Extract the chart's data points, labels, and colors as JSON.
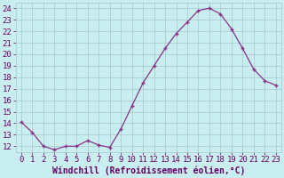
{
  "x": [
    0,
    1,
    2,
    3,
    4,
    5,
    6,
    7,
    8,
    9,
    10,
    11,
    12,
    13,
    14,
    15,
    16,
    17,
    18,
    19,
    20,
    21,
    22,
    23
  ],
  "y": [
    14.1,
    13.2,
    12.0,
    11.7,
    12.0,
    12.0,
    12.5,
    12.1,
    11.9,
    13.5,
    15.5,
    17.5,
    19.0,
    20.5,
    21.8,
    22.8,
    23.8,
    24.0,
    23.5,
    22.2,
    20.5,
    18.7,
    17.7,
    17.3
  ],
  "line_color": "#883388",
  "marker": "+",
  "bg_color": "#c8eef0",
  "grid_color": "#a8c8cc",
  "xlabel": "Windchill (Refroidissement éolien,°C)",
  "ylabel_ticks": [
    12,
    13,
    14,
    15,
    16,
    17,
    18,
    19,
    20,
    21,
    22,
    23,
    24
  ],
  "xlim": [
    -0.5,
    23.5
  ],
  "ylim": [
    11.5,
    24.5
  ],
  "xticks": [
    0,
    1,
    2,
    3,
    4,
    5,
    6,
    7,
    8,
    9,
    10,
    11,
    12,
    13,
    14,
    15,
    16,
    17,
    18,
    19,
    20,
    21,
    22,
    23
  ],
  "font_color": "#660066",
  "tick_fontsize": 6.5,
  "label_fontsize": 7.0,
  "linewidth": 0.9,
  "markersize": 3.5
}
